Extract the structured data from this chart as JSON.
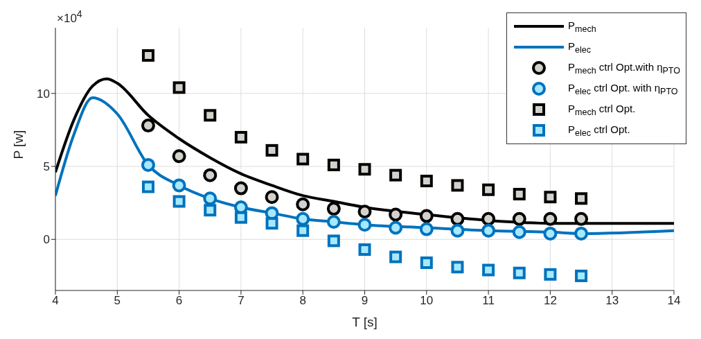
{
  "chart_data": {
    "type": "line",
    "xlabel": "T [s]",
    "ylabel": "P [w]",
    "annotations": [
      "×10$^{4}$"
    ],
    "xlim": [
      4,
      14
    ],
    "xticks": [
      4,
      5,
      6,
      7,
      8,
      9,
      10,
      11,
      12,
      13,
      14
    ],
    "ylim": [
      -3.5,
      14.5
    ],
    "yticks": [
      0,
      5,
      10
    ],
    "grid": true,
    "legend": "top right",
    "series": [
      {
        "name": "P$_{mech}$",
        "marker": "none",
        "color": "#000000",
        "x": [
          4,
          4.3,
          4.6,
          4.83,
          5,
          5.5,
          6,
          6.5,
          7,
          7.5,
          8,
          8.5,
          9,
          10,
          11,
          12,
          13,
          14
        ],
        "values": [
          4.6,
          8.2,
          10.5,
          11,
          10.7,
          8.5,
          6.9,
          5.6,
          4.5,
          3.7,
          3,
          2.6,
          2.2,
          1.7,
          1.3,
          1.1,
          1.1,
          1.1
        ]
      },
      {
        "name": "P$_{elec}$",
        "marker": "none",
        "color": "#0072bd",
        "x": [
          4,
          4.3,
          4.6,
          5,
          5.5,
          6,
          6.5,
          7,
          7.5,
          8,
          8.5,
          9,
          10,
          11,
          12,
          12.5,
          14
        ],
        "values": [
          3,
          7.2,
          9.7,
          8.6,
          5.1,
          3.7,
          2.8,
          2.2,
          1.8,
          1.4,
          1.2,
          1,
          0.8,
          0.6,
          0.5,
          0.4,
          0.6
        ]
      },
      {
        "name": "P$_{mech}$ ctrl Opt.with η$_{PTO}$",
        "type": "scatter",
        "marker": "circle",
        "color": "#000000",
        "x": [
          5.5,
          6,
          6.5,
          7,
          7.5,
          8,
          8.5,
          9,
          9.5,
          10,
          10.5,
          11,
          11.5,
          12,
          12.5
        ],
        "values": [
          7.8,
          5.7,
          4.4,
          3.5,
          2.9,
          2.4,
          2.1,
          1.9,
          1.7,
          1.6,
          1.4,
          1.4,
          1.4,
          1.4,
          1.4
        ]
      },
      {
        "name": "P$_{elec}$ ctrl Opt. with η$_{PTO}$",
        "type": "scatter",
        "marker": "circle",
        "color": "#0072bd",
        "x": [
          5.5,
          6,
          6.5,
          7,
          7.5,
          8,
          8.5,
          9,
          9.5,
          10,
          10.5,
          11,
          11.5,
          12,
          12.5
        ],
        "values": [
          5.1,
          3.7,
          2.8,
          2.2,
          1.8,
          1.4,
          1.2,
          1,
          0.8,
          0.7,
          0.6,
          0.6,
          0.5,
          0.4,
          0.4
        ]
      },
      {
        "name": "P$_{mech}$ ctrl Opt.",
        "type": "scatter",
        "marker": "square",
        "color": "#000000",
        "x": [
          5.5,
          6,
          6.5,
          7,
          7.5,
          8,
          8.5,
          9,
          9.5,
          10,
          10.5,
          11,
          11.5,
          12,
          12.5
        ],
        "values": [
          12.6,
          10.4,
          8.5,
          7,
          6.1,
          5.5,
          5.1,
          4.8,
          4.4,
          4,
          3.7,
          3.4,
          3.1,
          2.9,
          2.8
        ]
      },
      {
        "name": "P$_{elec}$ ctrl Opt.",
        "type": "scatter",
        "marker": "square",
        "color": "#0072bd",
        "x": [
          5.5,
          6,
          6.5,
          7,
          7.5,
          8,
          8.5,
          9,
          9.5,
          10,
          10.5,
          11,
          11.5,
          12,
          12.5
        ],
        "values": [
          3.6,
          2.6,
          2,
          1.5,
          1.1,
          0.6,
          -0.1,
          -0.7,
          -1.2,
          -1.6,
          -1.9,
          -2.1,
          -2.3,
          -2.4,
          -2.5
        ]
      }
    ]
  }
}
